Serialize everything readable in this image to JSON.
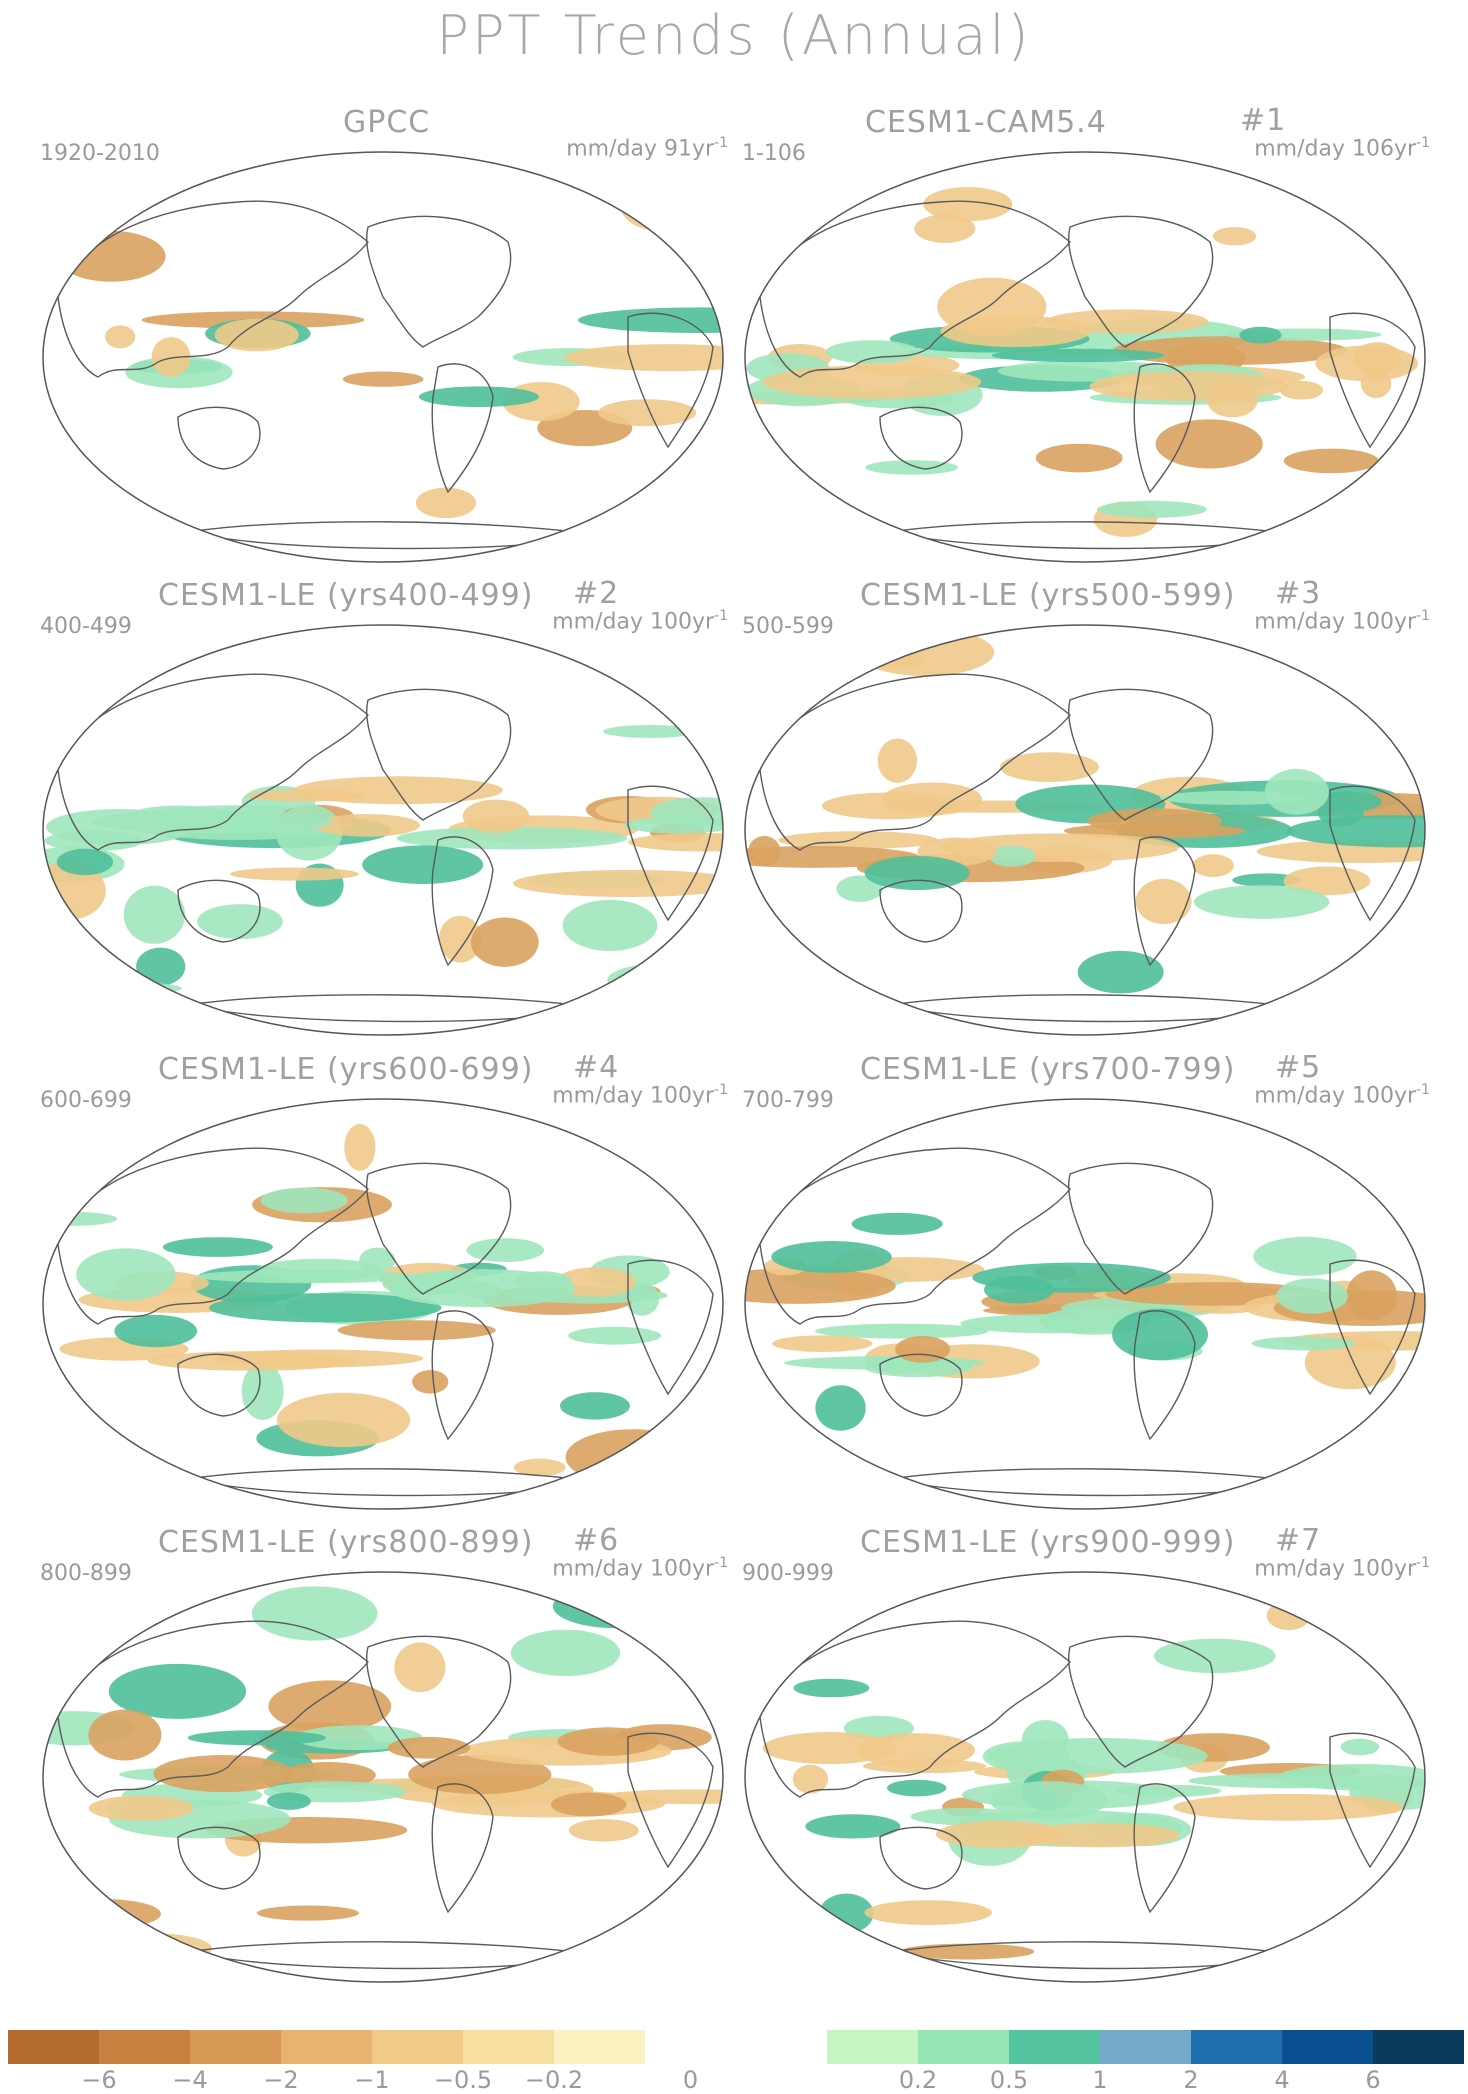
{
  "title": "PPT Trends (Annual)",
  "panels": [
    {
      "name": "GPCC",
      "number": "",
      "range": "1920-2010",
      "units_prefix": "mm/day 91yr",
      "units_exp": "-1"
    },
    {
      "name": "CESM1-CAM5.4",
      "number": "#1",
      "range": "1-106",
      "units_prefix": "mm/day 106yr",
      "units_exp": "-1"
    },
    {
      "name": "CESM1-LE (yrs400-499)",
      "number": "#2",
      "range": "400-499",
      "units_prefix": "mm/day 100yr",
      "units_exp": "-1"
    },
    {
      "name": "CESM1-LE (yrs500-599)",
      "number": "#3",
      "range": "500-599",
      "units_prefix": "mm/day 100yr",
      "units_exp": "-1"
    },
    {
      "name": "CESM1-LE (yrs600-699)",
      "number": "#4",
      "range": "600-699",
      "units_prefix": "mm/day 100yr",
      "units_exp": "-1"
    },
    {
      "name": "CESM1-LE (yrs700-799)",
      "number": "#5",
      "range": "700-799",
      "units_prefix": "mm/day 100yr",
      "units_exp": "-1"
    },
    {
      "name": "CESM1-LE (yrs800-899)",
      "number": "#6",
      "range": "800-899",
      "units_prefix": "mm/day 100yr",
      "units_exp": "-1"
    },
    {
      "name": "CESM1-LE (yrs900-999)",
      "number": "#7",
      "range": "900-999",
      "units_prefix": "mm/day 100yr",
      "units_exp": "-1"
    }
  ],
  "colorbar": {
    "colors": [
      "#b36a2e",
      "#c7803f",
      "#d99a57",
      "#e8b36f",
      "#f1ca86",
      "#f6df9f",
      "#fbf0c0",
      "#ffffff",
      "#ffffff",
      "#c6f5c4",
      "#94e6b3",
      "#55c2a0",
      "#74a9c8",
      "#1f6fb0",
      "#0a4f8f",
      "#0b3a5b"
    ],
    "labels": [
      "−6",
      "−4",
      "−2",
      "−1",
      "−0.5",
      "−0.2",
      "0",
      "0.2",
      "0.5",
      "1",
      "2",
      "4",
      "6"
    ]
  },
  "legend": {
    "dry": "#f0c98a",
    "wet": "#9fe6bd",
    "strong_wet": "#4fbf9a",
    "strong_dry": "#d9a25f"
  }
}
